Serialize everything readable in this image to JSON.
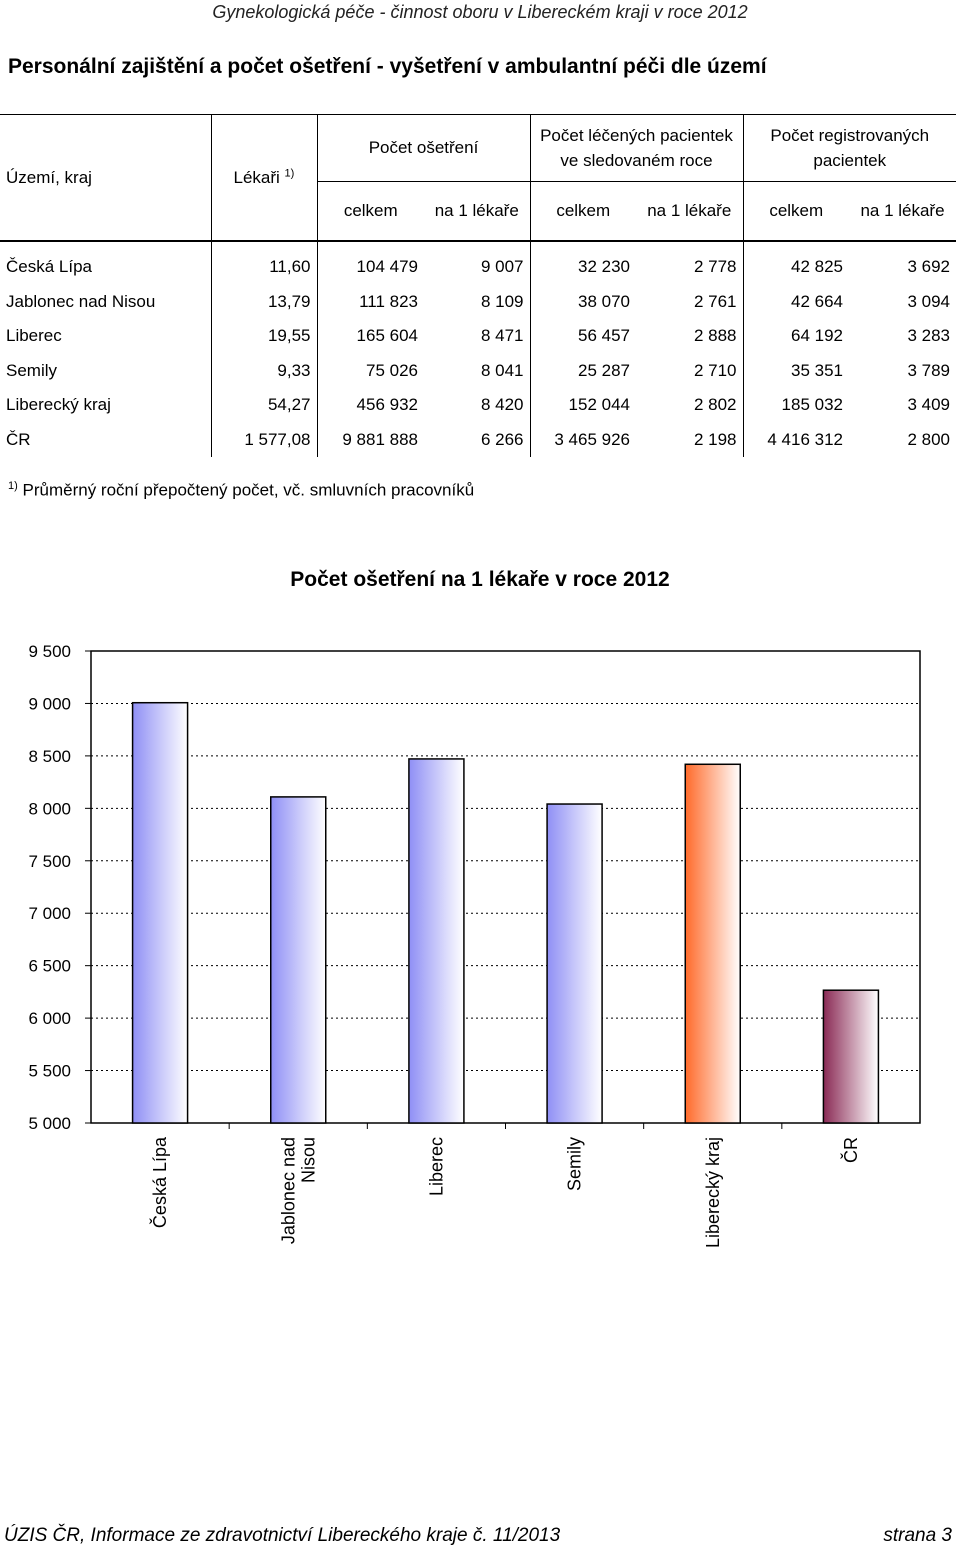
{
  "header": {
    "title": "Gynekologická péče - činnost oboru v Libereckém kraji v roce 2012"
  },
  "section_title": "Personální zajištění a počet ošetření - vyšetření v ambulantní péči dle území",
  "table": {
    "col_region": "Území, kraj",
    "col_doctors": "Lékaři",
    "col_doctors_sup": "1)",
    "group_treatments": "Počet ošetření",
    "group_patients_line1": "Počet léčených pacientek",
    "group_patients_line2": "ve sledovaném roce",
    "group_registered_line1": "Počet registrovaných",
    "group_registered_line2": "pacientek",
    "sub_total": "celkem",
    "sub_per_doctor": "na 1 lékaře",
    "rows": [
      {
        "name": "Česká Lípa",
        "doctors": "11,60",
        "treat_total": "104 479",
        "treat_per": "9 007",
        "pat_total": "32 230",
        "pat_per": "2 778",
        "reg_total": "42 825",
        "reg_per": "3 692"
      },
      {
        "name": "Jablonec nad Nisou",
        "doctors": "13,79",
        "treat_total": "111 823",
        "treat_per": "8 109",
        "pat_total": "38 070",
        "pat_per": "2 761",
        "reg_total": "42 664",
        "reg_per": "3 094"
      },
      {
        "name": "Liberec",
        "doctors": "19,55",
        "treat_total": "165 604",
        "treat_per": "8 471",
        "pat_total": "56 457",
        "pat_per": "2 888",
        "reg_total": "64 192",
        "reg_per": "3 283"
      },
      {
        "name": "Semily",
        "doctors": "9,33",
        "treat_total": "75 026",
        "treat_per": "8 041",
        "pat_total": "25 287",
        "pat_per": "2 710",
        "reg_total": "35 351",
        "reg_per": "3 789"
      },
      {
        "name": "Liberecký kraj",
        "doctors": "54,27",
        "treat_total": "456 932",
        "treat_per": "8 420",
        "pat_total": "152 044",
        "pat_per": "2 802",
        "reg_total": "185 032",
        "reg_per": "3 409"
      },
      {
        "name": "ČR",
        "doctors": "1 577,08",
        "treat_total": "9 881 888",
        "treat_per": "6 266",
        "pat_total": "3 465 926",
        "pat_per": "2 198",
        "reg_total": "4 416 312",
        "reg_per": "2 800"
      }
    ]
  },
  "footnote": {
    "sup": "1)",
    "text": " Průměrný roční přepočtený počet, vč. smluvních pracovníků"
  },
  "chart_title": "Počet ošetření na 1 lékaře v roce 2012",
  "chart_data": {
    "type": "bar",
    "title": "Počet ošetření na 1 lékaře v roce 2012",
    "categories": [
      "Česká Lípa",
      "Jablonec nad Nisou",
      "Liberec",
      "Semily",
      "Liberecký kraj",
      "ČR"
    ],
    "category_label_lines": [
      [
        "Česká Lípa"
      ],
      [
        "Jablonec nad",
        "Nisou"
      ],
      [
        "Liberec"
      ],
      [
        "Semily"
      ],
      [
        "Liberecký kraj"
      ],
      [
        "ČR"
      ]
    ],
    "values": [
      9007,
      8109,
      8471,
      8041,
      8420,
      6266
    ],
    "ylim": [
      5000,
      9500
    ],
    "yticks": [
      5000,
      5500,
      6000,
      6500,
      7000,
      7500,
      8000,
      8500,
      9000,
      9500
    ],
    "ytick_labels": [
      "5 000",
      "5 500",
      "6 000",
      "6 500",
      "7 000",
      "7 500",
      "8 000",
      "8 500",
      "9 000",
      "9 500"
    ],
    "grid": true,
    "bar_colors": [
      "blue-gradient",
      "blue-gradient",
      "blue-gradient",
      "blue-gradient",
      "orange-gradient",
      "maroon-gradient"
    ],
    "colors": {
      "blue": "#8f8ff5",
      "orange": "#ff6a2a",
      "maroon": "#8a2a55"
    }
  },
  "footer": {
    "left": "ÚZIS ČR, Informace ze zdravotnictví Libereckého kraje č. 11/2013",
    "right": "strana 3"
  }
}
